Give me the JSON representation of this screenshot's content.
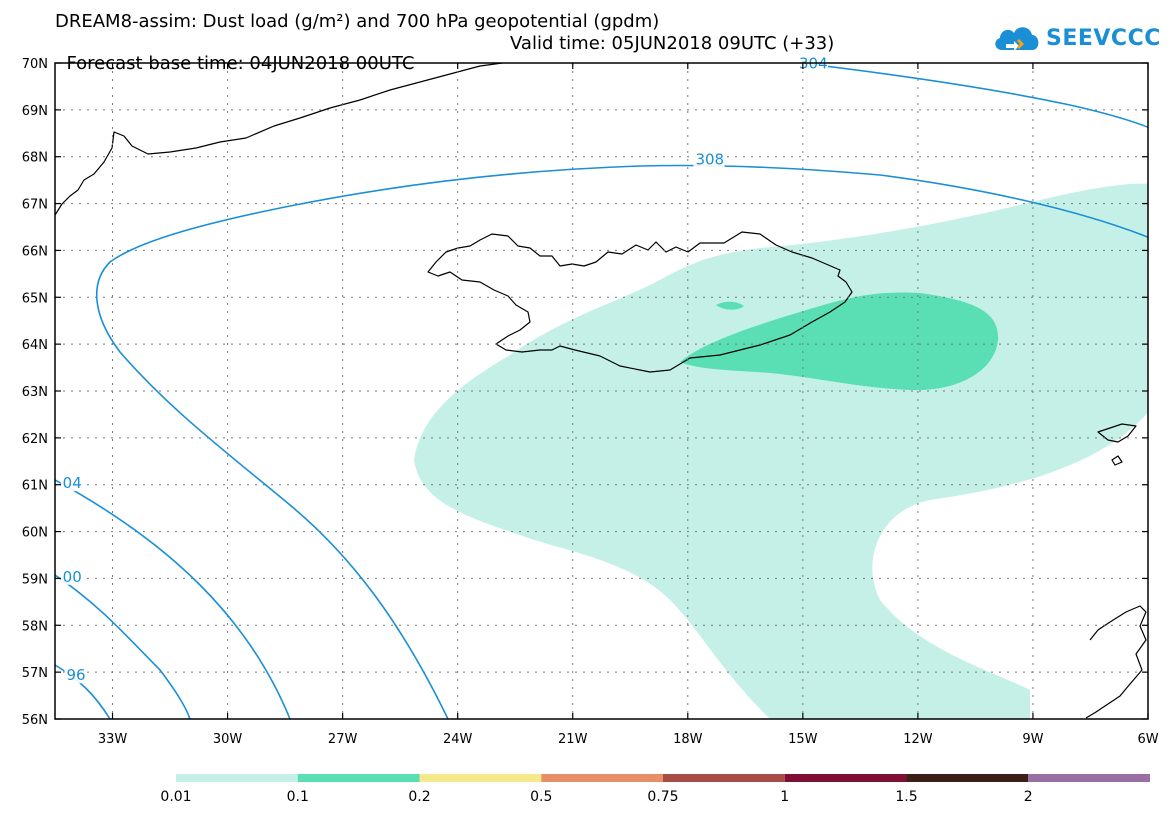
{
  "header": {
    "title_line1": "DREAM8-assim: Dust load (g/m²) and 700 hPa geopotential (gpdm)",
    "forecast_base": "Forecast base time: 04JUN2018 00UTC",
    "valid_time": "Valid time: 05JUN2018 09UTC (+33)"
  },
  "logo": {
    "text": "SEEVCCC",
    "icon": "cloud-logo-icon"
  },
  "map": {
    "lat_labels": [
      "70N",
      "69N",
      "68N",
      "67N",
      "66N",
      "65N",
      "64N",
      "63N",
      "62N",
      "61N",
      "60N",
      "59N",
      "58N",
      "57N",
      "56N"
    ],
    "lon_labels": [
      "33W",
      "30W",
      "27W",
      "24W",
      "21W",
      "18W",
      "15W",
      "12W",
      "9W",
      "6W"
    ],
    "lat_range": [
      56,
      70
    ],
    "lon_range": [
      -34.5,
      -6
    ],
    "contour_labels": [
      {
        "text": "304",
        "lon": -15.1,
        "lat": 69.9
      },
      {
        "text": "308",
        "lon": -17.8,
        "lat": 67.85
      },
      {
        "text": "04",
        "lon": -34.3,
        "lat": 60.95
      },
      {
        "text": "00",
        "lon": -34.3,
        "lat": 58.95
      },
      {
        "text": "96",
        "lon": -34.2,
        "lat": 56.85
      }
    ]
  },
  "colorbar": {
    "levels": [
      "0.01",
      "0.1",
      "0.2",
      "0.5",
      "0.75",
      "1",
      "1.5",
      "2"
    ],
    "colors": [
      "#c4f0e8",
      "#5adfb4",
      "#f5e98a",
      "#e88f68",
      "#a84c48",
      "#7f0f34",
      "#3c2018",
      "#9a6fa4"
    ]
  },
  "colors": {
    "contour": "#1a8fd6",
    "dust_low": "#c4f0e8",
    "dust_mid": "#5adfb4"
  }
}
